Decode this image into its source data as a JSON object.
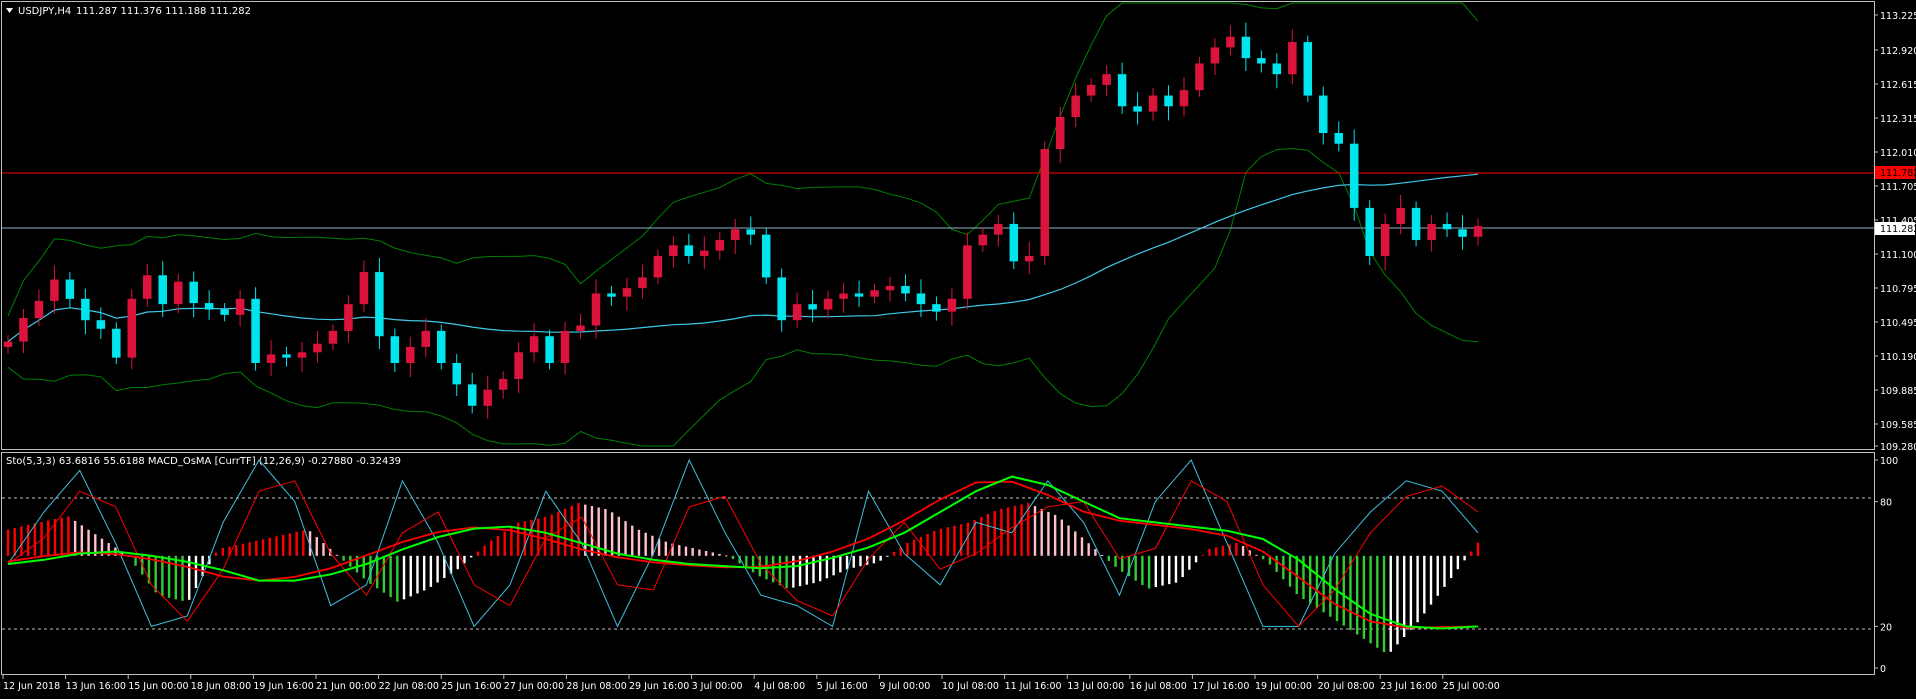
{
  "window": {
    "title": "USDJPY,H4",
    "ohlc": "111.287 111.376 111.188 111.282",
    "menu_icon": "triangle-down-icon"
  },
  "colors": {
    "background": "#000000",
    "frame": "#c0c0c0",
    "text": "#ffffff",
    "bull": "#dc143c",
    "bear": "#00e5ee",
    "ma": "#3fc8e8",
    "bands": "#008000",
    "resistance": "#ff0000",
    "current_price_line": "#8ab0c8",
    "osma_up": "#ff0000",
    "osma_up_weak": "#ffc0cb",
    "osma_down": "#32cd32",
    "osma_down_weak": "#ffffff",
    "sto_main": "#40c0e0",
    "sto_signal": "#ff0000",
    "macd_main": "#ff0000",
    "macd_signal": "#00ff00"
  },
  "price_axis": {
    "ticks": [
      "113.225",
      "112.920",
      "112.615",
      "112.315",
      "112.010",
      "111.705",
      "111.405",
      "111.100",
      "110.795",
      "110.495",
      "110.190",
      "109.885",
      "109.585",
      "109.280"
    ],
    "resistance_label": "111.783",
    "current_label": "111.282"
  },
  "indicator_panel": {
    "legend": "Sto(5,3,3) 63.6816 55.6188  MACD_OsMA [CurrTF] (12,26,9) -0.27880 -0.32439",
    "scale_ticks": [
      "100",
      "80",
      "20",
      "0"
    ]
  },
  "time_axis": {
    "labels": [
      "12 Jun 2018",
      "13 Jun 16:00",
      "15 Jun 00:00",
      "18 Jun 08:00",
      "19 Jun 16:00",
      "21 Jun 00:00",
      "22 Jun 08:00",
      "25 Jun 16:00",
      "27 Jun 00:00",
      "28 Jun 08:00",
      "29 Jun 16:00",
      "3 Jul 00:00",
      "4 Jul 08:00",
      "5 Jul 16:00",
      "9 Jul 00:00",
      "10 Jul 08:00",
      "11 Jul 16:00",
      "13 Jul 00:00",
      "16 Jul 08:00",
      "17 Jul 16:00",
      "19 Jul 00:00",
      "20 Jul 08:00",
      "23 Jul 16:00",
      "25 Jul 00:00"
    ]
  },
  "chart_data": {
    "type": "candlestick",
    "symbol": "USDJPY",
    "timeframe": "H4",
    "y_range": [
      109.28,
      113.3
    ],
    "resistance_level": 111.783,
    "current_price": 111.282,
    "closes": [
      110.2,
      110.42,
      110.58,
      110.78,
      110.6,
      110.4,
      110.32,
      110.05,
      110.6,
      110.82,
      110.55,
      110.76,
      110.56,
      110.5,
      110.45,
      110.6,
      110.0,
      110.08,
      110.05,
      110.1,
      110.18,
      110.3,
      110.55,
      110.85,
      110.25,
      110.0,
      110.15,
      110.3,
      110.0,
      109.8,
      109.6,
      109.75,
      109.85,
      110.1,
      110.25,
      110.0,
      110.3,
      110.35,
      110.65,
      110.62,
      110.7,
      110.8,
      111.0,
      111.1,
      111.0,
      111.05,
      111.15,
      111.25,
      111.2,
      110.8,
      110.4,
      110.55,
      110.5,
      110.6,
      110.65,
      110.62,
      110.68,
      110.72,
      110.65,
      110.55,
      110.48,
      110.6,
      111.1,
      111.2,
      111.3,
      110.95,
      111.0,
      112.0,
      112.3,
      112.5,
      112.6,
      112.7,
      112.4,
      112.35,
      112.5,
      112.4,
      112.55,
      112.8,
      112.95,
      113.05,
      112.85,
      112.8,
      112.7,
      113.0,
      112.5,
      112.15,
      112.05,
      111.45,
      111.0,
      111.3,
      111.45,
      111.15,
      111.3,
      111.25,
      111.18,
      111.28
    ],
    "stochastic_main": [
      50,
      75,
      95,
      60,
      20,
      25,
      70,
      100,
      80,
      30,
      40,
      90,
      60,
      20,
      40,
      85,
      60,
      20,
      55,
      100,
      65,
      35,
      30,
      20,
      85,
      55,
      40,
      70,
      65,
      90,
      70,
      35,
      80,
      100,
      60,
      20,
      20,
      55,
      75,
      90,
      85,
      65
    ],
    "macd_signal_line": [
      50,
      52,
      55,
      56,
      54,
      51,
      47,
      42,
      42,
      45,
      50,
      57,
      63,
      67,
      68,
      65,
      60,
      55,
      52,
      50,
      49,
      48,
      49,
      53,
      58,
      65,
      75,
      85,
      92,
      88,
      80,
      72,
      70,
      68,
      66,
      62,
      52,
      38,
      26,
      20,
      19,
      20
    ],
    "osma_values": [
      0.2,
      0.25,
      0.3,
      0.15,
      0,
      -0.3,
      -0.35,
      0.05,
      0.1,
      0.15,
      0.2,
      0,
      -0.2,
      -0.35,
      -0.25,
      -0.1,
      0.1,
      0.25,
      0.3,
      0.4,
      0.35,
      0.2,
      0.1,
      0.05,
      0,
      -0.15,
      -0.25,
      -0.2,
      -0.1,
      -0.05,
      0.1,
      0.2,
      0.25,
      0.35,
      0.4,
      0.3,
      0.1,
      -0.1,
      -0.25,
      -0.2,
      0.05,
      0.1,
      -0.05,
      -0.3,
      -0.45,
      -0.6,
      -0.75,
      -0.5,
      -0.2,
      0.1
    ],
    "osma_range": [
      -0.85,
      0.65
    ],
    "indicator_y_range": [
      0,
      100
    ],
    "levels": [
      20,
      80
    ]
  }
}
